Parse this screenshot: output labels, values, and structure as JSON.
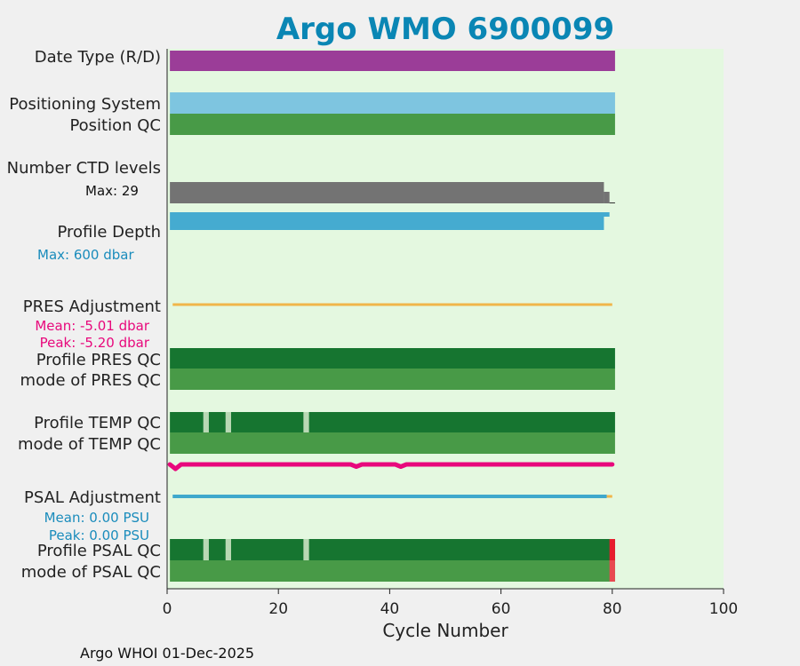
{
  "chart_data": {
    "type": "bar",
    "title": "Argo WMO 6900099",
    "xlabel": "Cycle Number",
    "xlim": [
      0,
      100
    ],
    "xticks": [
      0,
      20,
      40,
      60,
      80,
      100
    ],
    "footer": "Argo WHOI 01-Dec-2025",
    "row_labels": {
      "date_type": "Date Type (R/D)",
      "positioning_system": "Positioning System",
      "position_qc": "Position QC",
      "number_ctd_levels": "Number CTD levels",
      "profile_depth": "Profile Depth",
      "pres_adjustment": "PRES Adjustment",
      "profile_pres_qc": "Profile PRES QC",
      "mode_pres_qc": "mode of PRES QC",
      "profile_temp_qc": "Profile TEMP QC",
      "mode_temp_qc": "mode of TEMP QC",
      "psal_adjustment": "PSAL Adjustment",
      "profile_psal_qc": "Profile PSAL QC",
      "mode_psal_qc": "mode of PSAL QC"
    },
    "annotations": {
      "ctd_max": "Max: 29",
      "depth_max": "Max:  600 dbar",
      "pres_mean": "Mean: -5.01 dbar",
      "pres_peak": "Peak: -5.20 dbar",
      "psal_mean": "Mean: 0.00 PSU",
      "psal_peak": "Peak: 0.00 PSU"
    },
    "colors": {
      "background": "#e4f8e0",
      "title": "#0a86b4",
      "date_type": "#9b3d98",
      "positioning_system": "#7ec5e0",
      "position_qc": "#489a47",
      "ctd_levels": "#737373",
      "profile_depth": "#45abd0",
      "pres_adjustment": "#f0b64a",
      "profile_qc_good": "#167530",
      "mode_qc_good": "#489a47",
      "qc_gap": "#b9d8b4",
      "qc_bad": "#e81d2d",
      "temp_trace": "#e8087c",
      "psal_adjustment": "#3fa8cc",
      "psal_adjustment_tail": "#f0b64a",
      "pres_annotation": "#e8087c",
      "psal_annotation": "#1a8cbc"
    },
    "series": {
      "date_type": {
        "cycles": [
          0.5,
          80.5
        ]
      },
      "positioning_system": {
        "cycles": [
          0.5,
          80.5
        ]
      },
      "position_qc": {
        "cycles": [
          0.5,
          80.5
        ]
      },
      "ctd_levels": {
        "max": 29,
        "main_end": 78.5,
        "tail_end": 79.5
      },
      "profile_depth": {
        "max_dbar": 600,
        "upper_end": 79.5,
        "lower_end": 78.5
      },
      "pres_adjustment": {
        "cycles": [
          1,
          80
        ],
        "mean": -5.01,
        "peak": -5.2
      },
      "temp_qc_gaps": [
        7,
        11,
        25
      ],
      "psal_qc_gaps": [
        7,
        11,
        25
      ],
      "psal_qc_bad_cycle": 80,
      "psal_adjustment": {
        "cycles": [
          1,
          79
        ],
        "tail_end": 80,
        "mean": 0.0,
        "peak": 0.0
      },
      "temp_trace": [
        [
          0.5,
          0.0
        ],
        [
          1.5,
          0.55
        ],
        [
          2.5,
          0.0
        ],
        [
          33,
          0.0
        ],
        [
          34,
          0.28
        ],
        [
          35,
          0.0
        ],
        [
          41,
          0.0
        ],
        [
          42,
          0.28
        ],
        [
          43,
          0.0
        ],
        [
          80,
          0.0
        ]
      ]
    }
  }
}
